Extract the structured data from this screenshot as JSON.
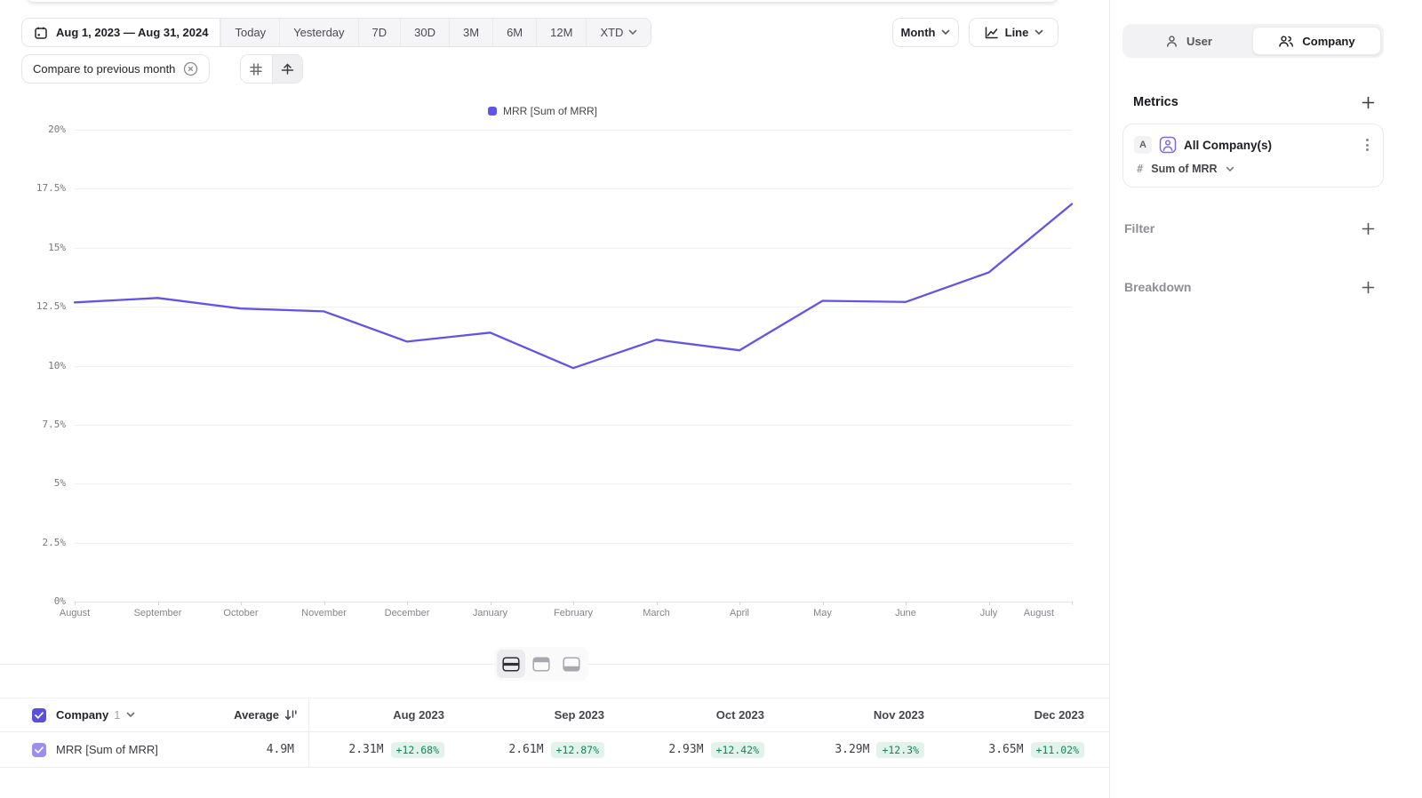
{
  "colors": {
    "accent": "#6254E8",
    "checkbox_dark": "#5A50DA",
    "checkbox_light": "#9C8EF0",
    "badge_green_text": "#17835F",
    "badge_green_bg": "#E2F3EB"
  },
  "toolbar": {
    "date_range": "Aug 1, 2023 — Aug 31, 2024",
    "presets": [
      "Today",
      "Yesterday",
      "7D",
      "30D",
      "3M",
      "6M",
      "12M"
    ],
    "xtd_label": "XTD",
    "compare_chip": "Compare to previous month",
    "granularity": "Month",
    "chart_type": "Line"
  },
  "legend": {
    "label": "MRR [Sum of MRR]"
  },
  "chart_data": {
    "type": "line",
    "categories": [
      "August",
      "September",
      "October",
      "November",
      "December",
      "January",
      "February",
      "March",
      "April",
      "May",
      "June",
      "July",
      "August"
    ],
    "series": [
      {
        "name": "MRR [Sum of MRR]",
        "color": "#6254E8",
        "values": [
          12.68,
          12.87,
          12.42,
          12.3,
          11.02,
          11.4,
          9.9,
          11.1,
          10.65,
          12.75,
          12.7,
          13.95,
          16.85
        ]
      }
    ],
    "ylim": [
      0,
      20
    ],
    "yticks": [
      0,
      2.5,
      5,
      7.5,
      10,
      12.5,
      15,
      17.5,
      20
    ],
    "ytick_format": "percent",
    "xlabel": "",
    "ylabel": "",
    "grid": true,
    "legend_position": "top"
  },
  "table": {
    "company_label": "Company",
    "company_count": "1",
    "average_label": "Average",
    "row_label": "MRR [Sum of MRR]",
    "average_value": "4.9M",
    "columns": [
      {
        "label": "Aug 2023",
        "value": "2.31M",
        "delta": "+12.68%"
      },
      {
        "label": "Sep 2023",
        "value": "2.61M",
        "delta": "+12.87%"
      },
      {
        "label": "Oct 2023",
        "value": "2.93M",
        "delta": "+12.42%"
      },
      {
        "label": "Nov 2023",
        "value": "3.29M",
        "delta": "+12.3%"
      },
      {
        "label": "Dec 2023",
        "value": "3.65M",
        "delta": "+11.02%"
      }
    ]
  },
  "sidebar": {
    "tabs": [
      {
        "label": "User",
        "selected": false
      },
      {
        "label": "Company",
        "selected": true
      }
    ],
    "metrics_heading": "Metrics",
    "metric": {
      "letter": "A",
      "name": "All Company(s)",
      "hash": "#",
      "aggregation": "Sum of MRR"
    },
    "filter_heading": "Filter",
    "breakdown_heading": "Breakdown"
  }
}
